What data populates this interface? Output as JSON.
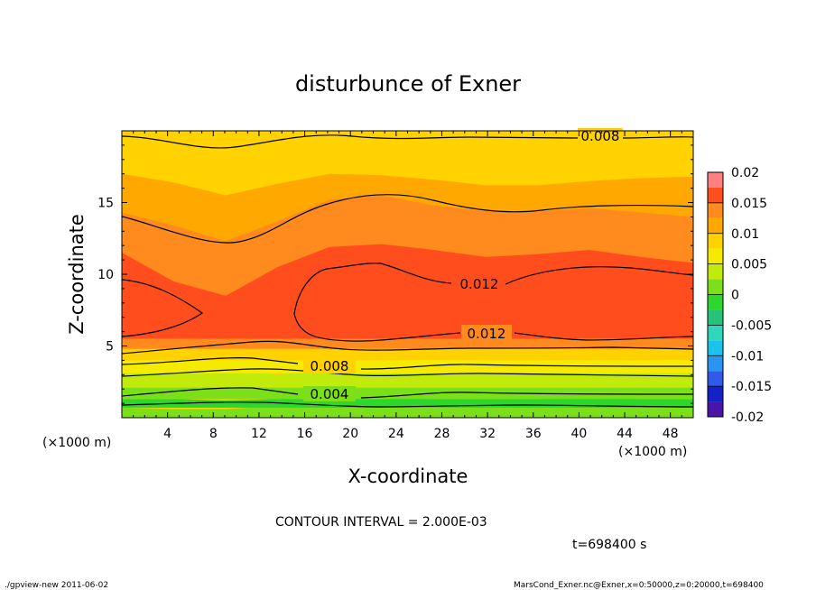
{
  "chart_data": {
    "type": "contour",
    "title": "disturbunce of Exner",
    "xlabel": "X-coordinate",
    "ylabel": "Z-coordinate",
    "x_unit": "(×1000 m)",
    "z_unit": "(×1000 m)",
    "xlim": [
      0,
      50
    ],
    "zlim": [
      0,
      20
    ],
    "x_ticks": [
      "4",
      "8",
      "12",
      "16",
      "20",
      "24",
      "28",
      "32",
      "36",
      "40",
      "44",
      "48"
    ],
    "x_tick_values": [
      4,
      8,
      12,
      16,
      20,
      24,
      28,
      32,
      36,
      40,
      44,
      48
    ],
    "z_ticks": [
      "5",
      "10",
      "15"
    ],
    "z_tick_values": [
      5,
      10,
      15
    ],
    "colorbar": {
      "labels": [
        "0.02",
        "0.015",
        "0.01",
        "0.005",
        "0",
        "-0.005",
        "-0.01",
        "-0.015",
        "-0.02"
      ],
      "values": [
        0.02,
        0.015,
        0.01,
        0.005,
        0,
        -0.005,
        -0.01,
        -0.015,
        -0.02
      ],
      "levels": [
        -0.02,
        -0.0175,
        -0.015,
        -0.0125,
        -0.01,
        -0.0075,
        -0.005,
        -0.0025,
        0,
        0.0025,
        0.005,
        0.0075,
        0.01,
        0.0125,
        0.015,
        0.0175,
        0.02
      ],
      "colors": [
        "#7B2890",
        "#4A14A8",
        "#1420C8",
        "#2F5AEB",
        "#2896F0",
        "#18C3EE",
        "#2FD7BC",
        "#26C27A",
        "#2CD82C",
        "#7BE01A",
        "#C2EB0C",
        "#F5EB00",
        "#FFD200",
        "#FFA800",
        "#FF8A1E",
        "#FF4D1E",
        "#FF8080"
      ]
    },
    "contour_interval": "CONTOUR INTERVAL = 2.000E-03",
    "time_label": "t=698400 s",
    "contour_labels": [
      "0.008",
      "0.012",
      "0.012",
      "0.008",
      "0.004"
    ],
    "contour_label_values": [
      0.008,
      0.012,
      0.012,
      0.008,
      0.004
    ],
    "bands": [
      {
        "z": [
          0.0,
          0.7,
          0.6,
          0.6,
          0.8,
          0.9,
          0.8,
          0.7,
          0.7,
          0.7,
          0.8,
          0.7,
          0.7
        ],
        "color": "#7BE01A"
      },
      {
        "z": [
          0.7,
          1.3,
          1.3,
          1.2,
          1.3,
          1.5,
          1.4,
          1.3,
          1.3,
          1.3,
          1.4,
          1.3,
          1.3
        ],
        "color": "#2CD82C"
      },
      {
        "z": [
          1.3,
          2.1,
          2.1,
          2.3,
          2.1,
          2.4,
          2.4,
          2.3,
          2.1,
          2.1,
          2.3,
          2.2,
          2.2
        ],
        "color": "#7BE01A"
      },
      {
        "z": [
          2.1,
          3.1,
          3.2,
          3.5,
          3.0,
          3.4,
          3.5,
          3.3,
          3.1,
          3.1,
          3.4,
          3.3,
          3.2
        ],
        "color": "#C2EB0C"
      },
      {
        "z": [
          3.1,
          4.0,
          4.2,
          4.6,
          4.0,
          4.2,
          4.4,
          4.2,
          4.0,
          4.0,
          4.2,
          4.2,
          4.1
        ],
        "color": "#F5EB00"
      },
      {
        "z": [
          4.0,
          4.8,
          5.2,
          5.6,
          4.9,
          5.0,
          5.3,
          5.1,
          4.9,
          4.8,
          5.0,
          5.0,
          5.0
        ],
        "color": "#FFD200"
      },
      {
        "z": [
          4.8,
          19.5,
          18.9,
          19.0,
          19.6,
          19.8,
          19.8,
          19.6,
          19.3,
          19.3,
          19.5,
          19.6,
          19.7
        ],
        "color": "#FFD200"
      },
      {
        "z": [
          4.8,
          17.0,
          16.4,
          15.5,
          16.3,
          17.0,
          16.9,
          16.6,
          16.2,
          16.2,
          16.5,
          16.7,
          16.8
        ],
        "color": "#FFA800"
      },
      {
        "z": [
          4.8,
          14.3,
          13.4,
          12.3,
          13.7,
          15.2,
          15.5,
          14.8,
          14.4,
          14.4,
          14.6,
          14.3,
          14.0
        ],
        "color": "#FF8A1E"
      },
      {
        "z": [
          5.5,
          11.5,
          9.5,
          8.5,
          10.5,
          11.9,
          12.1,
          11.7,
          11.2,
          11.4,
          11.7,
          11.2,
          10.8
        ],
        "color": "#FF4D1E"
      }
    ],
    "core_zones": [
      {
        "x_range": [
          0.0,
          7.2
        ],
        "z_center": 7.5,
        "half_depth": 1.8,
        "color": "#FF4D1E"
      },
      {
        "x_range": [
          16.0,
          27.0
        ],
        "z_center": 7.9,
        "half_depth": 2.1,
        "color": "#FF4D1E"
      },
      {
        "x_range": [
          35.2,
          50.0
        ],
        "z_center": 7.8,
        "half_depth": 2.1,
        "color": "#FF4D1E"
      }
    ]
  },
  "footer": {
    "left": "./gpview-new   2011-06-02",
    "right": "MarsCond_Exner.nc@Exner,x=0:50000,z=0:20000,t=698400"
  }
}
